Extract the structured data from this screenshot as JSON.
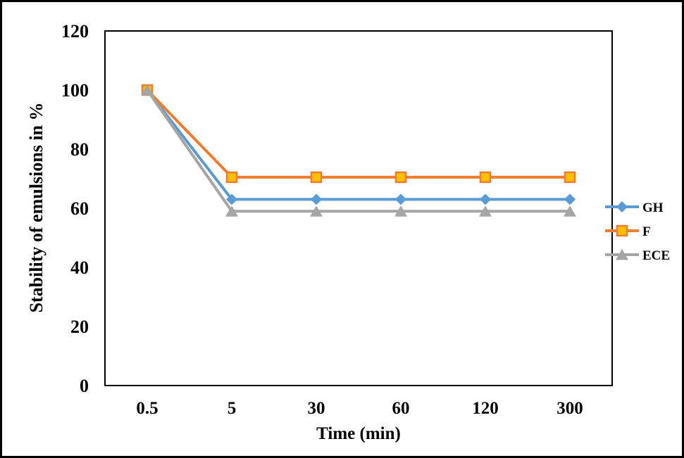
{
  "chart_data": {
    "type": "line",
    "title": "",
    "xlabel": "Time (min)",
    "ylabel": "Stability of emulsions in %",
    "categories": [
      "0.5",
      "5",
      "30",
      "60",
      "120",
      "300"
    ],
    "series": [
      {
        "name": "GH",
        "marker": "diamond",
        "line_color": "#5B9BD5",
        "marker_fill": "#5B9BD5",
        "marker_stroke": "#5B9BD5",
        "values": [
          100,
          63,
          63,
          63,
          63,
          63
        ]
      },
      {
        "name": "F",
        "marker": "square",
        "line_color": "#ED7D31",
        "marker_fill": "#FFC000",
        "marker_stroke": "#ED7D31",
        "values": [
          100,
          70.5,
          70.5,
          70.5,
          70.5,
          70.5
        ]
      },
      {
        "name": "ECE",
        "marker": "triangle",
        "line_color": "#A5A5A5",
        "marker_fill": "#A5A5A5",
        "marker_stroke": "#A5A5A5",
        "values": [
          100,
          59,
          59,
          59,
          59,
          59
        ]
      }
    ],
    "y_axis": {
      "min": 0,
      "max": 120,
      "step": 20,
      "ticks": [
        0,
        20,
        40,
        60,
        80,
        100,
        120
      ]
    },
    "x_axis_type": "category",
    "grid": false,
    "legend_position": "right",
    "axis_color": "#000000",
    "frame_color": "#000000",
    "background_color": "#FFFFFF"
  }
}
